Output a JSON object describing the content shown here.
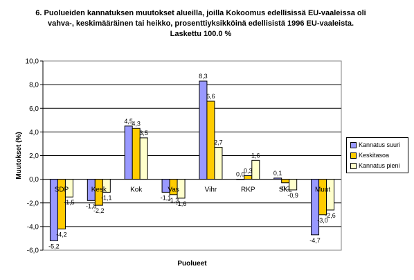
{
  "chart_data": {
    "type": "bar",
    "title_lines": [
      "6. Puolueiden kannatuksen muutokset alueilla, joilla Kokoomus edellisissä EU-vaaleissa oli",
      "vahva-, keskimääräinen tai heikko, prosenttiyksikköinä edellisistä 1996 EU-vaaleista.",
      "Laskettu 100.0 %"
    ],
    "xlabel": "Puolueet",
    "ylabel": "Muutokset (%)",
    "ylim": [
      -6,
      10
    ],
    "yticks": [
      "-6,0",
      "-4,0",
      "-2,0",
      "0,0",
      "2,0",
      "4,0",
      "6,0",
      "8,0",
      "10,0"
    ],
    "grid": true,
    "legend_position": "right",
    "categories": [
      "SDP",
      "Kesk",
      "Kok",
      "Vas",
      "Vihr",
      "RKP",
      "SKL",
      "Muut"
    ],
    "series": [
      {
        "name": "Kannatus suuri",
        "color": "#9999ff",
        "values": [
          -5.2,
          -1.8,
          4.5,
          -1.1,
          8.3,
          0.0,
          0.1,
          -4.7
        ],
        "labels": [
          "-5,2",
          "-1,8",
          "4,5",
          "-1,1",
          "8,3",
          "0,0",
          "0,1",
          "-4,7"
        ]
      },
      {
        "name": "Keskitasoa",
        "color": "#ffcc00",
        "values": [
          -4.2,
          -2.2,
          4.3,
          -1.3,
          6.6,
          0.3,
          -0.3,
          -3.0
        ],
        "labels": [
          "-4,2",
          "-2,2",
          "4,3",
          "-1,3",
          "6,6",
          "0,3",
          "-0,3",
          "-3,0"
        ]
      },
      {
        "name": "Kannatus pieni",
        "color": "#ffffcc",
        "values": [
          -1.5,
          -1.1,
          3.5,
          -1.6,
          2.7,
          1.6,
          -0.9,
          -2.6
        ],
        "labels": [
          "-1,5",
          "-1,1",
          "3,5",
          "-1,6",
          "2,7",
          "1,6",
          "-0,9",
          "-2,6"
        ]
      }
    ]
  }
}
